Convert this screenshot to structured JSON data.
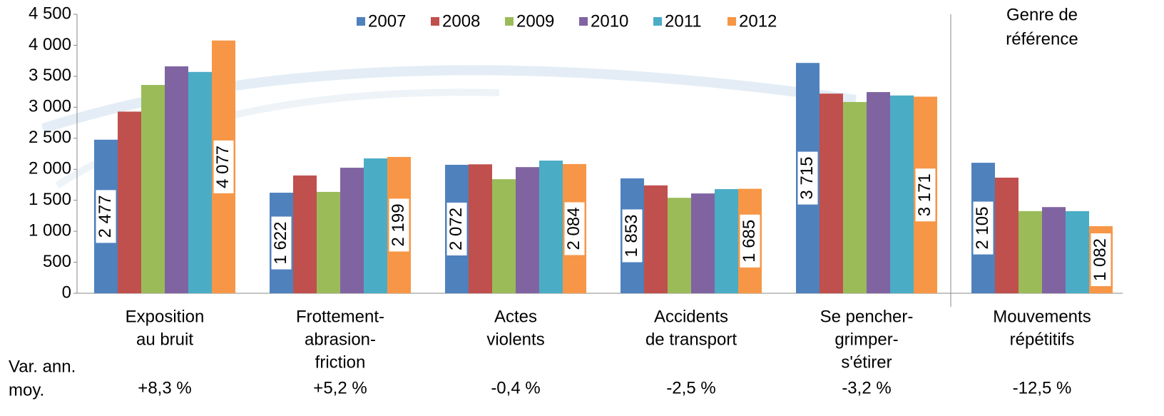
{
  "chart_data": {
    "type": "bar",
    "categories": [
      [
        "Exposition",
        "au bruit"
      ],
      [
        "Frottement-",
        "abrasion-",
        "friction"
      ],
      [
        "Actes",
        "violents"
      ],
      [
        "Accidents",
        "de transport"
      ],
      [
        "Se pencher-",
        "grimper-",
        "s'étirer"
      ],
      [
        "Mouvements",
        "répétitifs"
      ]
    ],
    "series": [
      {
        "name": "2007",
        "color": "#4f81bd",
        "values": [
          2477,
          1622,
          2072,
          1853,
          3715,
          2105
        ],
        "value_labels": [
          "2 477",
          "1 622",
          "2 072",
          "1 853",
          "3 715",
          "2 105"
        ]
      },
      {
        "name": "2008",
        "color": "#c0504d",
        "values": [
          2930,
          1900,
          2080,
          1740,
          3220,
          1865
        ]
      },
      {
        "name": "2009",
        "color": "#9bbb59",
        "values": [
          3360,
          1635,
          1840,
          1540,
          3085,
          1325
        ]
      },
      {
        "name": "2010",
        "color": "#8064a2",
        "values": [
          3660,
          2025,
          2035,
          1610,
          3245,
          1390
        ]
      },
      {
        "name": "2011",
        "color": "#4bacc6",
        "values": [
          3570,
          2175,
          2140,
          1680,
          3190,
          1325
        ]
      },
      {
        "name": "2012",
        "color": "#f79646",
        "values": [
          4077,
          2199,
          2084,
          1685,
          3171,
          1082
        ],
        "value_labels": [
          "4 077",
          "2 199",
          "2 084",
          "1 685",
          "3 171",
          "1 082"
        ]
      }
    ],
    "ylim": [
      0,
      4500
    ],
    "yticks": [
      0,
      500,
      {
        "value": 1000,
        "label": "1 000"
      },
      {
        "value": 1500,
        "label": "1 500"
      },
      {
        "value": 2000,
        "label": "2 000"
      },
      {
        "value": 2500,
        "label": "2 500"
      },
      {
        "value": 3000,
        "label": "3 000"
      },
      {
        "value": 3500,
        "label": "3 500"
      },
      {
        "value": 4000,
        "label": "4 000"
      },
      {
        "value": 4500,
        "label": "4 500"
      }
    ],
    "reference_label": [
      "Genre de",
      "référence"
    ],
    "var_label": [
      "Var. ann.",
      "moy."
    ],
    "var_values": [
      "+8,3 %",
      "+5,2 %",
      "-0,4 %",
      "-2,5 %",
      "-3,2 %",
      "-12,5 %"
    ],
    "legend": "top"
  }
}
